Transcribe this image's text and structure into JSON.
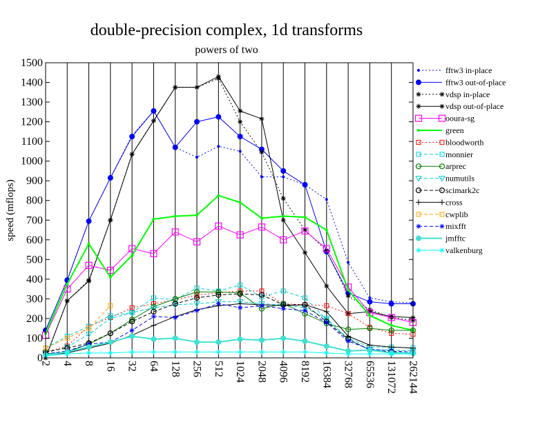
{
  "chart_data": {
    "type": "line",
    "title": "double-precision complex, 1d transforms",
    "subtitle": "powers of two",
    "xlabel": "",
    "ylabel": "speed (mflops)",
    "ylim": [
      0,
      1500
    ],
    "yticks": [
      0,
      100,
      200,
      300,
      400,
      500,
      600,
      700,
      800,
      900,
      1000,
      1100,
      1200,
      1300,
      1400,
      1500
    ],
    "categories": [
      "2",
      "4",
      "8",
      "16",
      "32",
      "64",
      "128",
      "256",
      "512",
      "1024",
      "2048",
      "4096",
      "8192",
      "16384",
      "32768",
      "65536",
      "131072",
      "262144"
    ],
    "grid": true,
    "legend_position": "right",
    "series": [
      {
        "name": "fftw3 in-place",
        "color": "#0000ff",
        "dash": "2,3",
        "width": 1,
        "marker": "dot-small",
        "values": [
          140,
          395,
          695,
          915,
          1130,
          1255,
          1070,
          1020,
          1075,
          1050,
          920,
          920,
          880,
          805,
          485,
          305,
          285,
          280
        ]
      },
      {
        "name": "fftw3 out-of-place",
        "color": "#0000ff",
        "dash": "",
        "width": 1,
        "marker": "dot-large",
        "values": [
          140,
          395,
          695,
          915,
          1125,
          1255,
          1070,
          1200,
          1225,
          1125,
          1060,
          950,
          880,
          540,
          330,
          285,
          275,
          275
        ]
      },
      {
        "name": "vdsp in-place",
        "color": "#000000",
        "dash": "2,3",
        "width": 1,
        "marker": "star",
        "values": [
          0,
          290,
          395,
          700,
          1035,
          1205,
          1375,
          1375,
          1420,
          1200,
          1045,
          810,
          650,
          545,
          315,
          245,
          205,
          190
        ]
      },
      {
        "name": "vdsp out-of-place",
        "color": "#000000",
        "dash": "",
        "width": 1,
        "marker": "star",
        "values": [
          0,
          290,
          390,
          700,
          1035,
          1205,
          1375,
          1375,
          1430,
          1255,
          1215,
          700,
          535,
          365,
          225,
          235,
          210,
          205
        ]
      },
      {
        "name": "ooura-sg",
        "color": "#ff00ff",
        "dash": "",
        "width": 1,
        "marker": "square-large",
        "values": [
          115,
          350,
          470,
          445,
          555,
          530,
          640,
          590,
          670,
          625,
          665,
          600,
          645,
          555,
          360,
          230,
          205,
          180
        ]
      },
      {
        "name": "green",
        "color": "#00ff00",
        "dash": "",
        "width": 2,
        "marker": "dot-small",
        "values": [
          125,
          375,
          580,
          410,
          520,
          705,
          720,
          725,
          825,
          790,
          710,
          720,
          715,
          650,
          345,
          215,
          165,
          140
        ]
      },
      {
        "name": "bloodworth",
        "color": "#ff0000",
        "dash": "2,3",
        "width": 1,
        "marker": "square-small",
        "values": [
          30,
          60,
          160,
          205,
          255,
          275,
          295,
          320,
          330,
          340,
          340,
          275,
          270,
          265,
          225,
          155,
          125,
          120
        ]
      },
      {
        "name": "monnier",
        "color": "#00cccc",
        "dash": "5,3",
        "width": 1,
        "marker": "square-small",
        "values": [
          50,
          110,
          160,
          215,
          230,
          305,
          295,
          355,
          340,
          370,
          310,
          340,
          305,
          195,
          100,
          55,
          55,
          50
        ]
      },
      {
        "name": "arprec",
        "color": "#008000",
        "dash": "",
        "width": 1,
        "marker": "circle-open",
        "values": [
          20,
          30,
          70,
          125,
          195,
          260,
          300,
          335,
          335,
          330,
          250,
          275,
          225,
          175,
          145,
          150,
          140,
          140
        ]
      },
      {
        "name": "numutils",
        "color": "#00cccc",
        "dash": "5,3",
        "width": 1,
        "marker": "triangle-down",
        "values": [
          25,
          55,
          120,
          200,
          230,
          255,
          270,
          275,
          285,
          285,
          275,
          270,
          255,
          200,
          95,
          40,
          40,
          35
        ]
      },
      {
        "name": "scimark2c",
        "color": "#000000",
        "dash": "5,3",
        "width": 1,
        "marker": "circle-open",
        "values": [
          30,
          50,
          75,
          125,
          185,
          235,
          275,
          305,
          320,
          325,
          320,
          270,
          270,
          185,
          95,
          40,
          30,
          25
        ]
      },
      {
        "name": "cross",
        "color": "#000000",
        "dash": "",
        "width": 1,
        "marker": "plus",
        "values": [
          15,
          25,
          50,
          75,
          115,
          165,
          210,
          245,
          265,
          275,
          270,
          265,
          270,
          235,
          110,
          65,
          55,
          50
        ]
      },
      {
        "name": "cwplib",
        "color": "#ffa500",
        "dash": "5,3",
        "width": 1,
        "marker": "square-small",
        "values": [
          50,
          100,
          150,
          265,
          null,
          null,
          null,
          null,
          null,
          null,
          null,
          null,
          null,
          null,
          null,
          null,
          null,
          null
        ]
      },
      {
        "name": "mixfft",
        "color": "#0000ff",
        "dash": "5,3",
        "width": 1,
        "marker": "star",
        "values": [
          20,
          35,
          70,
          80,
          140,
          210,
          205,
          240,
          275,
          255,
          265,
          250,
          240,
          180,
          85,
          45,
          35,
          30
        ]
      },
      {
        "name": "jmfftc",
        "color": "#40e0d0",
        "dash": "",
        "width": 2,
        "marker": "dot-large",
        "values": [
          15,
          30,
          55,
          80,
          110,
          95,
          100,
          80,
          80,
          95,
          90,
          100,
          85,
          60,
          35,
          40,
          25,
          25
        ]
      },
      {
        "name": "valkenburg",
        "color": "#00ffff",
        "dash": "",
        "width": 1,
        "marker": "star",
        "values": [
          10,
          20,
          25,
          25,
          30,
          30,
          30,
          30,
          30,
          30,
          30,
          30,
          30,
          25,
          20,
          20,
          20,
          20
        ]
      }
    ]
  }
}
